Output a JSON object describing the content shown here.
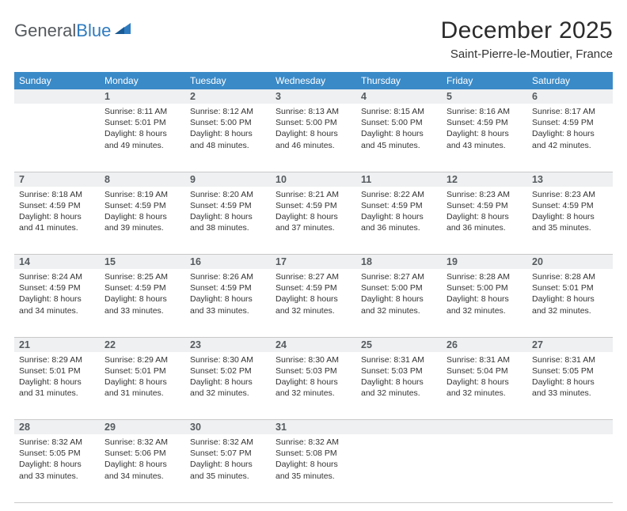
{
  "brand": {
    "part1": "General",
    "part2": "Blue"
  },
  "title": "December 2025",
  "location": "Saint-Pierre-le-Moutier, France",
  "colors": {
    "header_bg": "#3a8ac8",
    "daynum_bg": "#eef0f1",
    "week_border": "#2f7bbf",
    "cell_border": "#c9c9c9",
    "brand_gray": "#555a5e",
    "brand_blue": "#2f7bbf"
  },
  "weekdays": [
    "Sunday",
    "Monday",
    "Tuesday",
    "Wednesday",
    "Thursday",
    "Friday",
    "Saturday"
  ],
  "weeks": [
    {
      "nums": [
        "",
        "1",
        "2",
        "3",
        "4",
        "5",
        "6"
      ],
      "cells": [
        "",
        "Sunrise: 8:11 AM\nSunset: 5:01 PM\nDaylight: 8 hours and 49 minutes.",
        "Sunrise: 8:12 AM\nSunset: 5:00 PM\nDaylight: 8 hours and 48 minutes.",
        "Sunrise: 8:13 AM\nSunset: 5:00 PM\nDaylight: 8 hours and 46 minutes.",
        "Sunrise: 8:15 AM\nSunset: 5:00 PM\nDaylight: 8 hours and 45 minutes.",
        "Sunrise: 8:16 AM\nSunset: 4:59 PM\nDaylight: 8 hours and 43 minutes.",
        "Sunrise: 8:17 AM\nSunset: 4:59 PM\nDaylight: 8 hours and 42 minutes."
      ]
    },
    {
      "nums": [
        "7",
        "8",
        "9",
        "10",
        "11",
        "12",
        "13"
      ],
      "cells": [
        "Sunrise: 8:18 AM\nSunset: 4:59 PM\nDaylight: 8 hours and 41 minutes.",
        "Sunrise: 8:19 AM\nSunset: 4:59 PM\nDaylight: 8 hours and 39 minutes.",
        "Sunrise: 8:20 AM\nSunset: 4:59 PM\nDaylight: 8 hours and 38 minutes.",
        "Sunrise: 8:21 AM\nSunset: 4:59 PM\nDaylight: 8 hours and 37 minutes.",
        "Sunrise: 8:22 AM\nSunset: 4:59 PM\nDaylight: 8 hours and 36 minutes.",
        "Sunrise: 8:23 AM\nSunset: 4:59 PM\nDaylight: 8 hours and 36 minutes.",
        "Sunrise: 8:23 AM\nSunset: 4:59 PM\nDaylight: 8 hours and 35 minutes."
      ]
    },
    {
      "nums": [
        "14",
        "15",
        "16",
        "17",
        "18",
        "19",
        "20"
      ],
      "cells": [
        "Sunrise: 8:24 AM\nSunset: 4:59 PM\nDaylight: 8 hours and 34 minutes.",
        "Sunrise: 8:25 AM\nSunset: 4:59 PM\nDaylight: 8 hours and 33 minutes.",
        "Sunrise: 8:26 AM\nSunset: 4:59 PM\nDaylight: 8 hours and 33 minutes.",
        "Sunrise: 8:27 AM\nSunset: 4:59 PM\nDaylight: 8 hours and 32 minutes.",
        "Sunrise: 8:27 AM\nSunset: 5:00 PM\nDaylight: 8 hours and 32 minutes.",
        "Sunrise: 8:28 AM\nSunset: 5:00 PM\nDaylight: 8 hours and 32 minutes.",
        "Sunrise: 8:28 AM\nSunset: 5:01 PM\nDaylight: 8 hours and 32 minutes."
      ]
    },
    {
      "nums": [
        "21",
        "22",
        "23",
        "24",
        "25",
        "26",
        "27"
      ],
      "cells": [
        "Sunrise: 8:29 AM\nSunset: 5:01 PM\nDaylight: 8 hours and 31 minutes.",
        "Sunrise: 8:29 AM\nSunset: 5:01 PM\nDaylight: 8 hours and 31 minutes.",
        "Sunrise: 8:30 AM\nSunset: 5:02 PM\nDaylight: 8 hours and 32 minutes.",
        "Sunrise: 8:30 AM\nSunset: 5:03 PM\nDaylight: 8 hours and 32 minutes.",
        "Sunrise: 8:31 AM\nSunset: 5:03 PM\nDaylight: 8 hours and 32 minutes.",
        "Sunrise: 8:31 AM\nSunset: 5:04 PM\nDaylight: 8 hours and 32 minutes.",
        "Sunrise: 8:31 AM\nSunset: 5:05 PM\nDaylight: 8 hours and 33 minutes."
      ]
    },
    {
      "nums": [
        "28",
        "29",
        "30",
        "31",
        "",
        "",
        ""
      ],
      "cells": [
        "Sunrise: 8:32 AM\nSunset: 5:05 PM\nDaylight: 8 hours and 33 minutes.",
        "Sunrise: 8:32 AM\nSunset: 5:06 PM\nDaylight: 8 hours and 34 minutes.",
        "Sunrise: 8:32 AM\nSunset: 5:07 PM\nDaylight: 8 hours and 35 minutes.",
        "Sunrise: 8:32 AM\nSunset: 5:08 PM\nDaylight: 8 hours and 35 minutes.",
        "",
        "",
        ""
      ]
    }
  ]
}
